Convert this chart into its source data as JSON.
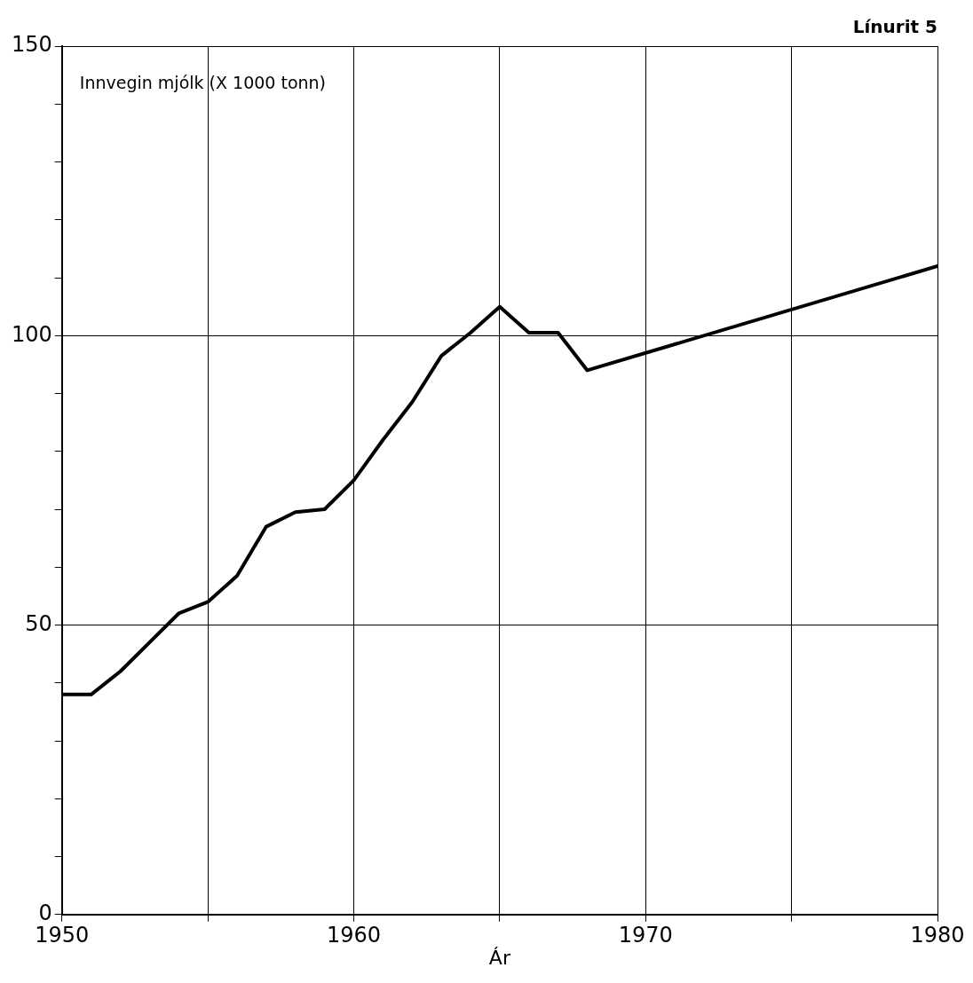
{
  "chart_data": {
    "type": "line",
    "title": "Línurit 5",
    "ylabel": "Innvegin mjólk (X 1000 tonn)",
    "xlabel": "Ár",
    "x": [
      1950,
      1951,
      1952,
      1953,
      1954,
      1955,
      1956,
      1957,
      1958,
      1959,
      1960,
      1961,
      1962,
      1963,
      1964,
      1965,
      1966,
      1967,
      1968,
      1980
    ],
    "series": [
      {
        "color": "#000000",
        "values": [
          38,
          38,
          42,
          47,
          52,
          54,
          58.5,
          67,
          69.5,
          70,
          75,
          82,
          88.5,
          96.5,
          100.5,
          105,
          100.5,
          100.5,
          94,
          112
        ]
      }
    ],
    "xlim": [
      1950,
      1980
    ],
    "xticks": [
      1950,
      {
        "value": 1955,
        "label": null
      },
      1960,
      {
        "value": 1965,
        "label": null
      },
      1970,
      {
        "value": 1975,
        "label": null
      },
      1980
    ],
    "ylim": [
      0,
      150
    ],
    "yticks": [
      0,
      {
        "value": 10,
        "label": null
      },
      {
        "value": 20,
        "label": null
      },
      {
        "value": 30,
        "label": null
      },
      {
        "value": 40,
        "label": null
      },
      50,
      {
        "value": 60,
        "label": null
      },
      {
        "value": 70,
        "label": null
      },
      {
        "value": 80,
        "label": null
      },
      {
        "value": 90,
        "label": null
      },
      100,
      {
        "value": 110,
        "label": null
      },
      {
        "value": 120,
        "label": null
      },
      {
        "value": 130,
        "label": null
      },
      {
        "value": 140,
        "label": null
      },
      150
    ],
    "grid": true,
    "legend": false,
    "marker": "none",
    "line_style": "solid"
  }
}
